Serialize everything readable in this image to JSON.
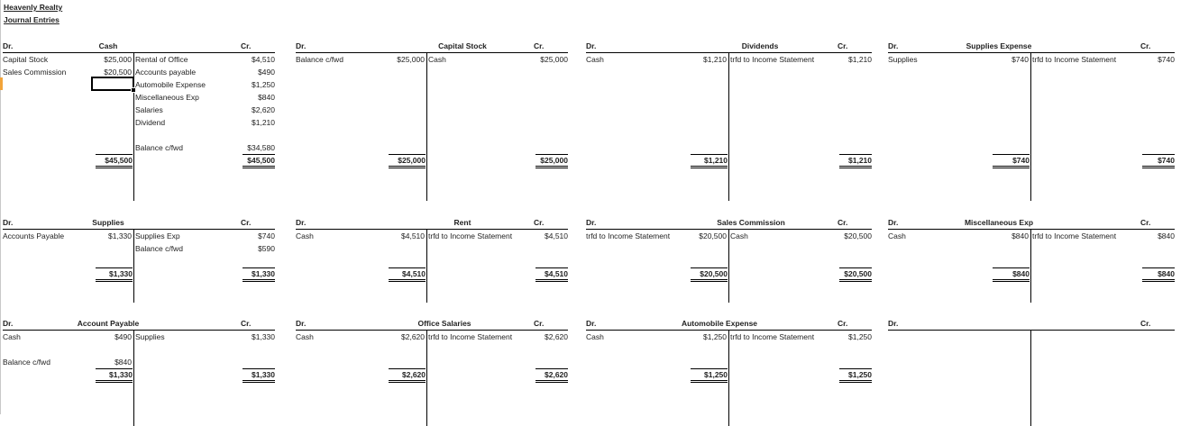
{
  "sheet": {
    "company": "Heavenly Realty",
    "subtitle": "Journal Entries"
  },
  "accounts": [
    {
      "title": "Cash",
      "dr_label": "Dr.",
      "cr_label": "Cr.",
      "debit": [
        {
          "label": "Capital Stock",
          "amount": "$25,000"
        },
        {
          "label": "Sales Commission",
          "amount": "$20,500"
        }
      ],
      "credit": [
        {
          "label": "Rental of Office",
          "amount": "$4,510"
        },
        {
          "label": "Accounts payable",
          "amount": "$490"
        },
        {
          "label": "Automobile Expense",
          "amount": "$1,250"
        },
        {
          "label": "Miscellaneous Exp",
          "amount": "$840"
        },
        {
          "label": "Salaries",
          "amount": "$2,620"
        },
        {
          "label": "Dividend",
          "amount": "$1,210"
        },
        {
          "label": "",
          "amount": ""
        },
        {
          "label": "Balance c/fwd",
          "amount": "$34,580"
        }
      ],
      "debit_total": "$45,500",
      "credit_total": "$45,500"
    },
    {
      "title": "Capital Stock",
      "dr_label": "Dr.",
      "cr_label": "Cr.",
      "debit": [
        {
          "label": "Balance c/fwd",
          "amount": "$25,000"
        }
      ],
      "credit": [
        {
          "label": "Cash",
          "amount": "$25,000"
        }
      ],
      "debit_total": "$25,000",
      "credit_total": "$25,000"
    },
    {
      "title": "Dividends",
      "dr_label": "Dr.",
      "cr_label": "Cr.",
      "debit": [
        {
          "label": "Cash",
          "amount": "$1,210"
        }
      ],
      "credit": [
        {
          "label": "trfd to Income Statement",
          "amount": "$1,210"
        }
      ],
      "debit_total": "$1,210",
      "credit_total": "$1,210"
    },
    {
      "title": "Supplies Expense",
      "dr_label": "Dr.",
      "cr_label": "Cr.",
      "debit": [
        {
          "label": "Supplies",
          "amount": "$740"
        }
      ],
      "credit": [
        {
          "label": "trfd to Income Statement",
          "amount": "$740"
        }
      ],
      "debit_total": "$740",
      "credit_total": "$740"
    },
    {
      "title": "Supplies",
      "dr_label": "Dr.",
      "cr_label": "Cr.",
      "debit": [
        {
          "label": "Accounts Payable",
          "amount": "$1,330"
        }
      ],
      "credit": [
        {
          "label": "Supplies Exp",
          "amount": "$740"
        },
        {
          "label": "Balance c/fwd",
          "amount": "$590"
        }
      ],
      "debit_total": "$1,330",
      "credit_total": "$1,330"
    },
    {
      "title": "Rent",
      "dr_label": "Dr.",
      "cr_label": "Cr.",
      "debit": [
        {
          "label": "Cash",
          "amount": "$4,510"
        }
      ],
      "credit": [
        {
          "label": "trfd to Income Statement",
          "amount": "$4,510"
        }
      ],
      "debit_total": "$4,510",
      "credit_total": "$4,510"
    },
    {
      "title": "Sales Commission",
      "dr_label": "Dr.",
      "cr_label": "Cr.",
      "debit": [
        {
          "label": "trfd to Income Statement",
          "amount": "$20,500"
        }
      ],
      "credit": [
        {
          "label": "Cash",
          "amount": "$20,500"
        }
      ],
      "debit_total": "$20,500",
      "credit_total": "$20,500"
    },
    {
      "title": "Miscellaneous Exp",
      "dr_label": "Dr.",
      "cr_label": "Cr.",
      "debit": [
        {
          "label": "Cash",
          "amount": "$840"
        }
      ],
      "credit": [
        {
          "label": "trfd to Income Statement",
          "amount": "$840"
        }
      ],
      "debit_total": "$840",
      "credit_total": "$840"
    },
    {
      "title": "Account Payable",
      "dr_label": "Dr.",
      "cr_label": "Cr.",
      "debit": [
        {
          "label": "Cash",
          "amount": "$490"
        },
        {
          "label": "",
          "amount": ""
        },
        {
          "label": "Balance c/fwd",
          "amount": "$840"
        }
      ],
      "credit": [
        {
          "label": "Supplies",
          "amount": "$1,330"
        }
      ],
      "debit_total": "$1,330",
      "credit_total": "$1,330"
    },
    {
      "title": "Office Salaries",
      "dr_label": "Dr.",
      "cr_label": "Cr.",
      "debit": [
        {
          "label": "Cash",
          "amount": "$2,620"
        }
      ],
      "credit": [
        {
          "label": "trfd to Income Statement",
          "amount": "$2,620"
        }
      ],
      "debit_total": "$2,620",
      "credit_total": "$2,620"
    },
    {
      "title": "Automobile Expense",
      "dr_label": "Dr.",
      "cr_label": "Cr.",
      "debit": [
        {
          "label": "Cash",
          "amount": "$1,250"
        }
      ],
      "credit": [
        {
          "label": "trfd to Income Statement",
          "amount": "$1,250"
        }
      ],
      "debit_total": "$1,250",
      "credit_total": "$1,250"
    },
    {
      "title": "",
      "dr_label": "Dr.",
      "cr_label": "Cr.",
      "debit": [],
      "credit": [],
      "debit_total": "",
      "credit_total": ""
    }
  ]
}
